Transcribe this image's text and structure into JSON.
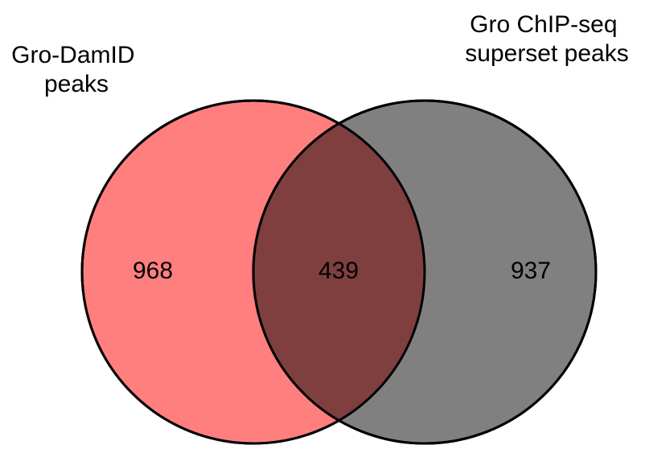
{
  "venn": {
    "sets": [
      {
        "label_lines": [
          "Gro-DamID",
          "peaks"
        ],
        "color": "#ff7f7f"
      },
      {
        "label_lines": [
          "Gro ChIP-seq",
          "superset peaks"
        ],
        "color": "#808080"
      }
    ],
    "overlap_color": "#7f3f3f",
    "outline_color": "#000000",
    "counts": {
      "left_only": "968",
      "both": "439",
      "right_only": "937"
    }
  }
}
